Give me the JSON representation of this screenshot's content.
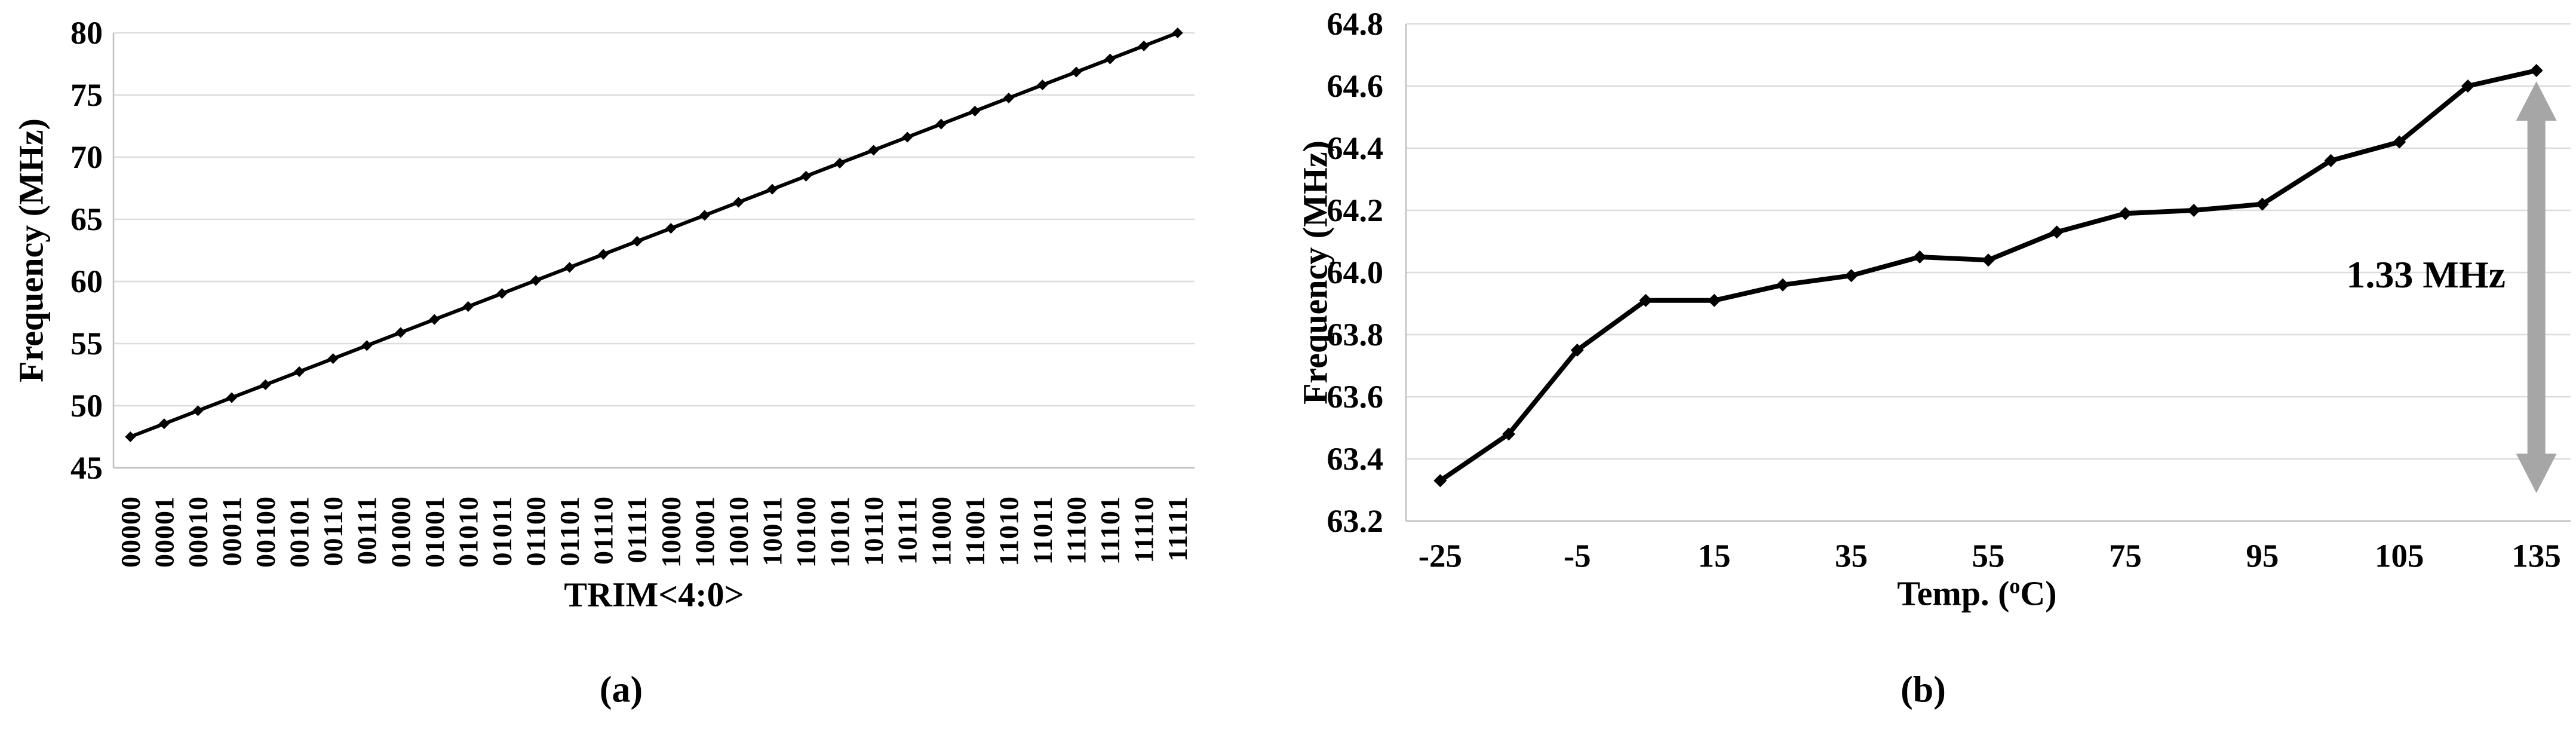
{
  "page": {
    "background": "#ffffff"
  },
  "chart_data": [
    {
      "id": "chart-a",
      "type": "line",
      "title": "",
      "xlabel": "TRIM<4:0>",
      "ylabel": "Frequency (MHz)",
      "caption": "(a)",
      "ylim": [
        45,
        80
      ],
      "yticks": [
        "45",
        "50",
        "55",
        "60",
        "65",
        "70",
        "75",
        "80"
      ],
      "grid": "horizontal",
      "legend_position": "none",
      "line_color": "#000000",
      "marker": "diamond",
      "gridline_color": "#dcdcdc",
      "axis_color": "#c0c0c0",
      "categories": [
        "00000",
        "00001",
        "00010",
        "00011",
        "00100",
        "00101",
        "00110",
        "00111",
        "01000",
        "01001",
        "01010",
        "01011",
        "01100",
        "01101",
        "01110",
        "01111",
        "10000",
        "10001",
        "10010",
        "10011",
        "10100",
        "10101",
        "10110",
        "10111",
        "11000",
        "11001",
        "11010",
        "11011",
        "11100",
        "11101",
        "11110",
        "11111"
      ],
      "values": [
        47.5,
        48.55,
        49.6,
        50.65,
        51.69,
        52.74,
        53.79,
        54.84,
        55.89,
        56.94,
        57.98,
        59.03,
        60.08,
        61.13,
        62.18,
        63.23,
        64.27,
        65.32,
        66.37,
        67.42,
        68.47,
        69.52,
        70.56,
        71.61,
        72.66,
        73.71,
        74.76,
        75.81,
        76.85,
        77.9,
        78.95,
        80.0
      ]
    },
    {
      "id": "chart-b",
      "type": "line",
      "title": "",
      "xlabel_parts": {
        "prefix": "Temp. (",
        "sup": "o",
        "suffix": "C)"
      },
      "ylabel": "Frequency (MHz)",
      "caption": "(b)",
      "ylim": [
        63.2,
        64.8
      ],
      "yticks": [
        "63.2",
        "63.4",
        "63.6",
        "63.8",
        "64.0",
        "64.2",
        "64.4",
        "64.6",
        "64.8"
      ],
      "grid": "horizontal",
      "legend_position": "none",
      "line_color": "#000000",
      "marker": "diamond",
      "gridline_color": "#dcdcdc",
      "axis_color": "#c0c0c0",
      "x": [
        -25,
        -15,
        -5,
        5,
        15,
        25,
        35,
        45,
        55,
        65,
        75,
        85,
        95,
        105,
        115,
        125,
        135
      ],
      "xtick_labels": [
        "-25",
        "-5",
        "15",
        "35",
        "55",
        "75",
        "95",
        "105",
        "135"
      ],
      "values": [
        63.33,
        63.48,
        63.75,
        63.91,
        63.91,
        63.96,
        63.99,
        64.05,
        64.04,
        64.13,
        64.19,
        64.2,
        64.22,
        64.36,
        64.42,
        64.6,
        64.65
      ],
      "annotation": {
        "text": "1.33 MHz",
        "arrow_color": "#a6a6a6",
        "span_mhz": 1.33
      }
    }
  ]
}
